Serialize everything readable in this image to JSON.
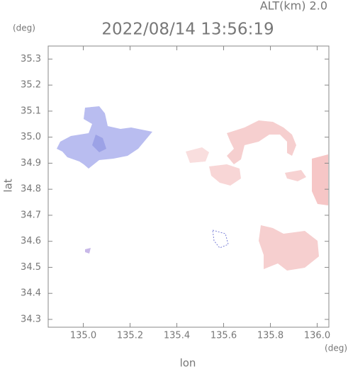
{
  "chart_data": {
    "type": "map",
    "title": "2022/08/14 13:56:19",
    "subtitle": "ALT(km) 2.0",
    "y_unit": "(deg)",
    "x_unit": "(deg)",
    "ylabel": "lat",
    "xlabel": "lon",
    "xlim": [
      134.85,
      136.05
    ],
    "ylim": [
      34.27,
      35.35
    ],
    "xticks": [
      {
        "value": 135,
        "label": "135.0"
      },
      135.2,
      135.4,
      135.6,
      135.8,
      {
        "value": 136,
        "label": "136.0"
      }
    ],
    "yticks": [
      34.3,
      34.4,
      34.5,
      34.6,
      34.7,
      34.8,
      34.9,
      {
        "value": 35,
        "label": "35.0"
      },
      35.1,
      35.2,
      35.3
    ]
  }
}
